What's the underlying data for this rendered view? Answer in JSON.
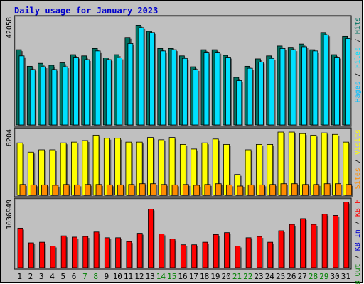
{
  "chart_data": {
    "type": "bar",
    "title": "Daily usage for January 2023",
    "days": [
      "1",
      "2",
      "3",
      "4",
      "5",
      "6",
      "7",
      "8",
      "9",
      "10",
      "11",
      "12",
      "13",
      "14",
      "15",
      "16",
      "17",
      "18",
      "19",
      "20",
      "21",
      "22",
      "23",
      "24",
      "25",
      "26",
      "27",
      "28",
      "29",
      "30",
      "31"
    ],
    "weekend_days": [
      "7",
      "8",
      "14",
      "15",
      "21",
      "22",
      "28",
      "29"
    ],
    "colors": {
      "title": "#0000cc",
      "panel_bg": "#c0c0c0",
      "hits": "#007060",
      "files": "#00e0ff",
      "pages": "#00bfff",
      "visits": "#ffff00",
      "sites": "#ff8c00",
      "kbout": "#008000",
      "kbin": "#0000cc",
      "kbf": "#ff0000",
      "weekday": "#000000",
      "weekend": "#008000"
    },
    "panel1": {
      "max_label": "42058",
      "legend": [
        {
          "text": "Hits",
          "color": "#007060"
        },
        {
          "text": "Files",
          "color": "#00e0ff"
        },
        {
          "text": "Pages",
          "color": "#00bfff"
        }
      ],
      "ymax": 42058,
      "hits": [
        30500,
        23800,
        25000,
        24200,
        25200,
        28500,
        28000,
        31000,
        27200,
        28500,
        35500,
        40500,
        38000,
        31000,
        31000,
        28000,
        23600,
        30500,
        30500,
        28200,
        19300,
        23800,
        26800,
        28000,
        32000,
        31500,
        32800,
        30500,
        37500,
        28500,
        35900
      ],
      "files": [
        28000,
        22500,
        23600,
        22500,
        23600,
        27500,
        26500,
        30000,
        26500,
        27200,
        33000,
        39500,
        37500,
        30000,
        30500,
        27000,
        22500,
        29500,
        29500,
        27500,
        18000,
        23000,
        25500,
        27000,
        31000,
        30500,
        31700,
        30000,
        36500,
        27500,
        35000
      ]
    },
    "panel2": {
      "max_label": "8204",
      "legend": [
        {
          "text": "Visits",
          "color": "#ffff00"
        },
        {
          "text": "Sites",
          "color": "#ff8c00"
        }
      ],
      "ymax": 8204,
      "visits": [
        6800,
        5600,
        5900,
        5900,
        6800,
        6900,
        7100,
        7800,
        7400,
        7400,
        6900,
        6900,
        7500,
        7200,
        7500,
        6600,
        6000,
        6800,
        7300,
        6600,
        2700,
        5900,
        6600,
        6600,
        8200,
        8200,
        8000,
        7800,
        8100,
        7900,
        6900
      ],
      "sites": [
        1400,
        1350,
        1350,
        1300,
        1400,
        1350,
        1400,
        1400,
        1350,
        1350,
        1400,
        1500,
        1500,
        1400,
        1350,
        1400,
        1300,
        1400,
        1500,
        1350,
        1200,
        1350,
        1350,
        1400,
        1500,
        1500,
        1400,
        1400,
        1500,
        1500,
        1400
      ]
    },
    "panel3": {
      "max_label": "1036949",
      "legend": [
        {
          "text": "KB F",
          "color": "#ff0000"
        },
        {
          "text": "KB In",
          "color": "#0000cc"
        },
        {
          "text": "KB Out",
          "color": "#008000"
        }
      ],
      "ymax": 1036949,
      "kbf": [
        620000,
        390000,
        400000,
        340000,
        500000,
        480000,
        490000,
        560000,
        470000,
        470000,
        410000,
        540000,
        920000,
        530000,
        450000,
        360000,
        360000,
        400000,
        520000,
        550000,
        340000,
        470000,
        490000,
        400000,
        580000,
        680000,
        770000,
        680000,
        840000,
        820000,
        1030000
      ]
    }
  }
}
